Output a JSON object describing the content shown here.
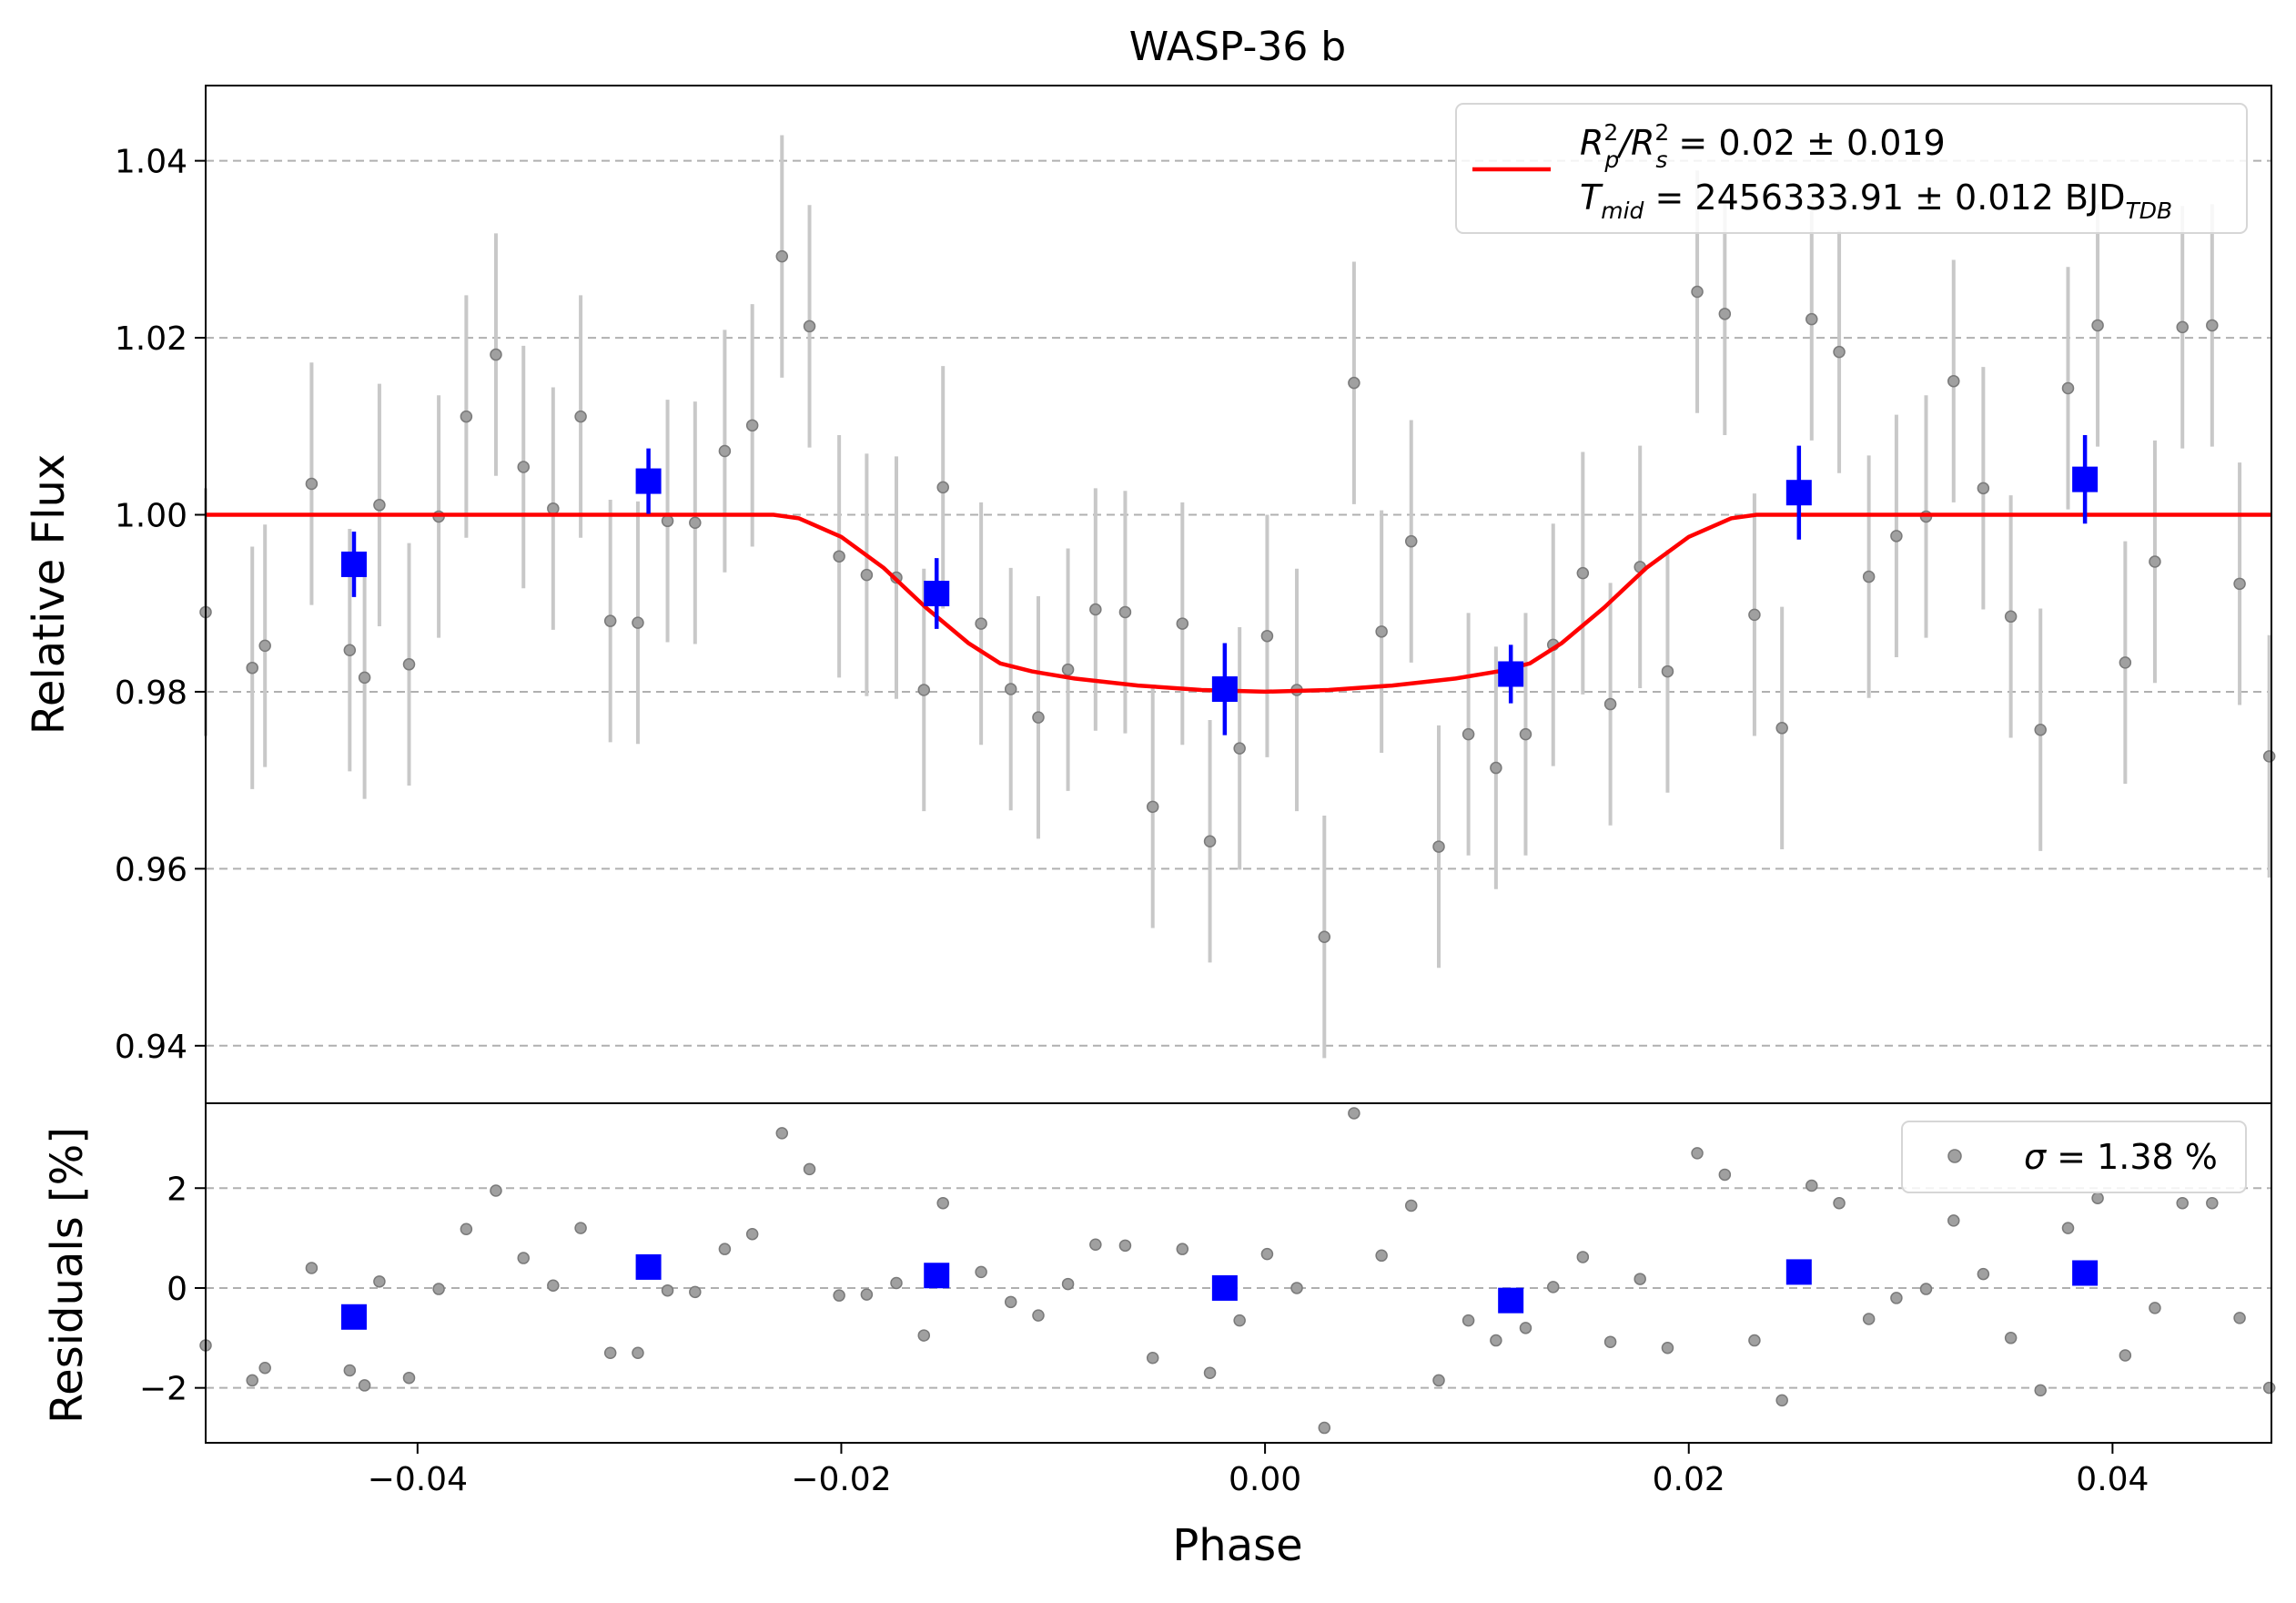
{
  "chart_data": {
    "type": "scatter",
    "title": "WASP-36 b",
    "xlabel": "Phase",
    "xlim": [
      -0.05,
      0.0475
    ],
    "xticks": [
      -0.04,
      -0.02,
      0.0,
      0.02,
      0.04
    ],
    "xtick_labels": [
      "−0.04",
      "−0.02",
      "0.00",
      "0.02",
      "0.04"
    ],
    "grid": "horizontal dashed",
    "colors": {
      "raw": "#888888",
      "errorbar": "#c8c8c8",
      "binned": "#0000ff",
      "model": "#ff0000"
    },
    "panels": [
      {
        "name": "flux",
        "ylabel": "Relative Flux",
        "ylim": [
          0.9335,
          1.0485
        ],
        "yticks": [
          0.94,
          0.96,
          0.98,
          1.0,
          1.02,
          1.04
        ],
        "ytick_labels": [
          "0.94",
          "0.96",
          "0.98",
          "1.00",
          "1.02",
          "1.04"
        ],
        "legend": {
          "position": "upper right",
          "line1_a": "R",
          "line1_a_sup": "2",
          "line1_a_sub": "p",
          "line1_b": "/R",
          "line1_b_sup": "2",
          "line1_b_sub": "s",
          "line1_c": " = 0.02 ± 0.019",
          "line2_a": "T",
          "line2_a_sub": "mid",
          "line2_b": " = 2456333.91 ± 0.012 BJD",
          "line2_b_sub": "TDB"
        },
        "raw": [
          {
            "x": -0.05,
            "y": 0.989,
            "err": 0.014
          },
          {
            "x": -0.0478,
            "y": 0.9827,
            "err": 0.0137
          },
          {
            "x": -0.0472,
            "y": 0.9852,
            "err": 0.0137
          },
          {
            "x": -0.045,
            "y": 1.0035,
            "err": 0.0137
          },
          {
            "x": -0.0432,
            "y": 0.9847,
            "err": 0.0137
          },
          {
            "x": -0.0425,
            "y": 0.9816,
            "err": 0.0137
          },
          {
            "x": -0.0418,
            "y": 1.0011,
            "err": 0.0137
          },
          {
            "x": -0.0404,
            "y": 0.9831,
            "err": 0.0137
          },
          {
            "x": -0.039,
            "y": 0.9998,
            "err": 0.0137
          },
          {
            "x": -0.0377,
            "y": 1.0111,
            "err": 0.0137
          },
          {
            "x": -0.0363,
            "y": 1.0181,
            "err": 0.0137
          },
          {
            "x": -0.035,
            "y": 1.0054,
            "err": 0.0137
          },
          {
            "x": -0.0336,
            "y": 1.0007,
            "err": 0.0137
          },
          {
            "x": -0.0323,
            "y": 1.0111,
            "err": 0.0137
          },
          {
            "x": -0.0309,
            "y": 0.988,
            "err": 0.0137
          },
          {
            "x": -0.0296,
            "y": 0.9878,
            "err": 0.0137
          },
          {
            "x": -0.0282,
            "y": 0.9993,
            "err": 0.0137
          },
          {
            "x": -0.0269,
            "y": 0.9991,
            "err": 0.0137
          },
          {
            "x": -0.0255,
            "y": 1.0072,
            "err": 0.0137
          },
          {
            "x": -0.0242,
            "y": 1.0101,
            "err": 0.0137
          },
          {
            "x": -0.0228,
            "y": 1.0292,
            "err": 0.0137
          },
          {
            "x": -0.0215,
            "y": 1.0213,
            "err": 0.0137
          },
          {
            "x": -0.0201,
            "y": 0.9953,
            "err": 0.0137
          },
          {
            "x": -0.0188,
            "y": 0.9932,
            "err": 0.0137
          },
          {
            "x": -0.0174,
            "y": 0.9929,
            "err": 0.0137
          },
          {
            "x": -0.0161,
            "y": 0.9802,
            "err": 0.0137
          },
          {
            "x": -0.0152,
            "y": 1.0031,
            "err": 0.0137
          },
          {
            "x": -0.0134,
            "y": 0.9877,
            "err": 0.0137
          },
          {
            "x": -0.012,
            "y": 0.9803,
            "err": 0.0137
          },
          {
            "x": -0.0107,
            "y": 0.9771,
            "err": 0.0137
          },
          {
            "x": -0.0093,
            "y": 0.9825,
            "err": 0.0137
          },
          {
            "x": -0.008,
            "y": 0.9893,
            "err": 0.0137
          },
          {
            "x": -0.0066,
            "y": 0.989,
            "err": 0.0137
          },
          {
            "x": -0.0053,
            "y": 0.967,
            "err": 0.0137
          },
          {
            "x": -0.0039,
            "y": 0.9877,
            "err": 0.0137
          },
          {
            "x": -0.0026,
            "y": 0.9631,
            "err": 0.0137
          },
          {
            "x": -0.0012,
            "y": 0.9736,
            "err": 0.0137
          },
          {
            "x": 0.0001,
            "y": 0.9863,
            "err": 0.0137
          },
          {
            "x": 0.0015,
            "y": 0.9802,
            "err": 0.0137
          },
          {
            "x": 0.0028,
            "y": 0.9523,
            "err": 0.0137
          },
          {
            "x": 0.0042,
            "y": 1.0149,
            "err": 0.0137
          },
          {
            "x": 0.0055,
            "y": 0.9868,
            "err": 0.0137
          },
          {
            "x": 0.0069,
            "y": 0.997,
            "err": 0.0137
          },
          {
            "x": 0.0082,
            "y": 0.9625,
            "err": 0.0137
          },
          {
            "x": 0.0096,
            "y": 0.9752,
            "err": 0.0137
          },
          {
            "x": 0.0109,
            "y": 0.9714,
            "err": 0.0137
          },
          {
            "x": 0.0123,
            "y": 0.9752,
            "err": 0.0137
          },
          {
            "x": 0.0136,
            "y": 0.9853,
            "err": 0.0137
          },
          {
            "x": 0.015,
            "y": 0.9934,
            "err": 0.0137
          },
          {
            "x": 0.0163,
            "y": 0.9786,
            "err": 0.0137
          },
          {
            "x": 0.0177,
            "y": 0.9941,
            "err": 0.0137
          },
          {
            "x": 0.019,
            "y": 0.9823,
            "err": 0.0137
          },
          {
            "x": 0.0204,
            "y": 1.0252,
            "err": 0.0137
          },
          {
            "x": 0.0217,
            "y": 1.0227,
            "err": 0.0137
          },
          {
            "x": 0.0231,
            "y": 0.9887,
            "err": 0.0137
          },
          {
            "x": 0.0244,
            "y": 0.9759,
            "err": 0.0137
          },
          {
            "x": 0.0258,
            "y": 1.0221,
            "err": 0.0137
          },
          {
            "x": 0.0271,
            "y": 1.0184,
            "err": 0.0137
          },
          {
            "x": 0.0285,
            "y": 0.993,
            "err": 0.0137
          },
          {
            "x": 0.0298,
            "y": 0.9976,
            "err": 0.0137
          },
          {
            "x": 0.0312,
            "y": 0.9998,
            "err": 0.0137
          },
          {
            "x": 0.0325,
            "y": 1.0151,
            "err": 0.0137
          },
          {
            "x": 0.0339,
            "y": 1.003,
            "err": 0.0137
          },
          {
            "x": 0.0352,
            "y": 0.9885,
            "err": 0.0137
          },
          {
            "x": 0.0366,
            "y": 0.9757,
            "err": 0.0137
          },
          {
            "x": 0.0379,
            "y": 1.0143,
            "err": 0.0137
          },
          {
            "x": 0.0393,
            "y": 1.0214,
            "err": 0.0137
          },
          {
            "x": 0.0406,
            "y": 0.9833,
            "err": 0.0137
          },
          {
            "x": 0.042,
            "y": 0.9947,
            "err": 0.0137
          },
          {
            "x": 0.0433,
            "y": 1.0212,
            "err": 0.0137
          },
          {
            "x": 0.0447,
            "y": 1.0214,
            "err": 0.0137
          },
          {
            "x": 0.046,
            "y": 0.9922,
            "err": 0.0137
          },
          {
            "x": 0.0474,
            "y": 0.9727,
            "err": 0.0137
          }
        ],
        "binned": [
          {
            "x": -0.043,
            "y": 0.9944,
            "err": 0.0037
          },
          {
            "x": -0.0291,
            "y": 1.0038,
            "err": 0.0037
          },
          {
            "x": -0.0155,
            "y": 0.9911,
            "err": 0.004
          },
          {
            "x": -0.0019,
            "y": 0.9803,
            "err": 0.0052
          },
          {
            "x": 0.0116,
            "y": 0.982,
            "err": 0.0033
          },
          {
            "x": 0.0252,
            "y": 1.0025,
            "err": 0.0053
          },
          {
            "x": 0.0387,
            "y": 1.004,
            "err": 0.005
          }
        ],
        "model": {
          "x": [
            -0.05,
            -0.0232,
            -0.022,
            -0.02,
            -0.018,
            -0.016,
            -0.014,
            -0.0125,
            -0.011,
            -0.009,
            -0.006,
            -0.003,
            0.0,
            0.003,
            0.006,
            0.009,
            0.011,
            0.0125,
            0.014,
            0.016,
            0.018,
            0.02,
            0.022,
            0.0232,
            0.0475
          ],
          "y": [
            1.0,
            1.0,
            0.9996,
            0.9975,
            0.994,
            0.9895,
            0.9855,
            0.9832,
            0.9823,
            0.9815,
            0.9807,
            0.9802,
            0.98,
            0.9802,
            0.9807,
            0.9815,
            0.9823,
            0.9832,
            0.9855,
            0.9895,
            0.994,
            0.9975,
            0.9996,
            1.0,
            1.0
          ]
        }
      },
      {
        "name": "residuals",
        "ylabel": "Residuals [%]",
        "ylim": [
          -3.1,
          3.7
        ],
        "yticks": [
          -2,
          0,
          2
        ],
        "ytick_labels": [
          "−2",
          "0",
          "2"
        ],
        "legend": {
          "position": "upper right",
          "sigma_symbol": "σ",
          "text": " = 1.38 %"
        },
        "raw": [
          {
            "x": -0.05,
            "y": -1.15
          },
          {
            "x": -0.0478,
            "y": -1.85
          },
          {
            "x": -0.0472,
            "y": -1.6
          },
          {
            "x": -0.045,
            "y": 0.4
          },
          {
            "x": -0.0432,
            "y": -1.65
          },
          {
            "x": -0.0425,
            "y": -1.95
          },
          {
            "x": -0.0418,
            "y": 0.13
          },
          {
            "x": -0.0404,
            "y": -1.8
          },
          {
            "x": -0.039,
            "y": -0.02
          },
          {
            "x": -0.0377,
            "y": 1.18
          },
          {
            "x": -0.0363,
            "y": 1.95
          },
          {
            "x": -0.035,
            "y": 0.6
          },
          {
            "x": -0.0336,
            "y": 0.05
          },
          {
            "x": -0.0323,
            "y": 1.2
          },
          {
            "x": -0.0309,
            "y": -1.3
          },
          {
            "x": -0.0296,
            "y": -1.3
          },
          {
            "x": -0.0282,
            "y": -0.05
          },
          {
            "x": -0.0269,
            "y": -0.08
          },
          {
            "x": -0.0255,
            "y": 0.78
          },
          {
            "x": -0.0242,
            "y": 1.08
          },
          {
            "x": -0.0228,
            "y": 3.1
          },
          {
            "x": -0.0215,
            "y": 2.38
          },
          {
            "x": -0.0201,
            "y": -0.15
          },
          {
            "x": -0.0188,
            "y": -0.13
          },
          {
            "x": -0.0174,
            "y": 0.1
          },
          {
            "x": -0.0161,
            "y": -0.95
          },
          {
            "x": -0.0152,
            "y": 1.7
          },
          {
            "x": -0.0134,
            "y": 0.32
          },
          {
            "x": -0.012,
            "y": -0.28
          },
          {
            "x": -0.0107,
            "y": -0.55
          },
          {
            "x": -0.0093,
            "y": 0.08
          },
          {
            "x": -0.008,
            "y": 0.87
          },
          {
            "x": -0.0066,
            "y": 0.85
          },
          {
            "x": -0.0053,
            "y": -1.4
          },
          {
            "x": -0.0039,
            "y": 0.78
          },
          {
            "x": -0.0026,
            "y": -1.7
          },
          {
            "x": -0.0012,
            "y": -0.65
          },
          {
            "x": 0.0001,
            "y": 0.68
          },
          {
            "x": 0.0015,
            "y": 0.0
          },
          {
            "x": 0.0028,
            "y": -2.8
          },
          {
            "x": 0.0042,
            "y": 3.5
          },
          {
            "x": 0.0055,
            "y": 0.65
          },
          {
            "x": 0.0069,
            "y": 1.65
          },
          {
            "x": 0.0082,
            "y": -1.85
          },
          {
            "x": 0.0096,
            "y": -0.65
          },
          {
            "x": 0.0109,
            "y": -1.05
          },
          {
            "x": 0.0123,
            "y": -0.8
          },
          {
            "x": 0.0136,
            "y": 0.02
          },
          {
            "x": 0.015,
            "y": 0.62
          },
          {
            "x": 0.0163,
            "y": -1.08
          },
          {
            "x": 0.0177,
            "y": 0.18
          },
          {
            "x": 0.019,
            "y": -1.2
          },
          {
            "x": 0.0204,
            "y": 2.7
          },
          {
            "x": 0.0217,
            "y": 2.27
          },
          {
            "x": 0.0231,
            "y": -1.05
          },
          {
            "x": 0.0244,
            "y": -2.25
          },
          {
            "x": 0.0258,
            "y": 2.05
          },
          {
            "x": 0.0271,
            "y": 1.7
          },
          {
            "x": 0.0285,
            "y": -0.62
          },
          {
            "x": 0.0298,
            "y": -0.2
          },
          {
            "x": 0.0312,
            "y": -0.02
          },
          {
            "x": 0.0325,
            "y": 1.35
          },
          {
            "x": 0.0339,
            "y": 0.28
          },
          {
            "x": 0.0352,
            "y": -1.0
          },
          {
            "x": 0.0366,
            "y": -2.05
          },
          {
            "x": 0.0379,
            "y": 1.2
          },
          {
            "x": 0.0393,
            "y": 1.8
          },
          {
            "x": 0.0406,
            "y": -1.35
          },
          {
            "x": 0.042,
            "y": -0.4
          },
          {
            "x": 0.0433,
            "y": 1.7
          },
          {
            "x": 0.0447,
            "y": 1.7
          },
          {
            "x": 0.046,
            "y": -0.6
          },
          {
            "x": 0.0474,
            "y": -2.0
          }
        ],
        "binned": [
          {
            "x": -0.043,
            "y": -0.58
          },
          {
            "x": -0.0291,
            "y": 0.42
          },
          {
            "x": -0.0155,
            "y": 0.25
          },
          {
            "x": -0.0019,
            "y": 0.0
          },
          {
            "x": 0.0116,
            "y": -0.25
          },
          {
            "x": 0.0252,
            "y": 0.32
          },
          {
            "x": 0.0387,
            "y": 0.3
          }
        ]
      }
    ]
  }
}
